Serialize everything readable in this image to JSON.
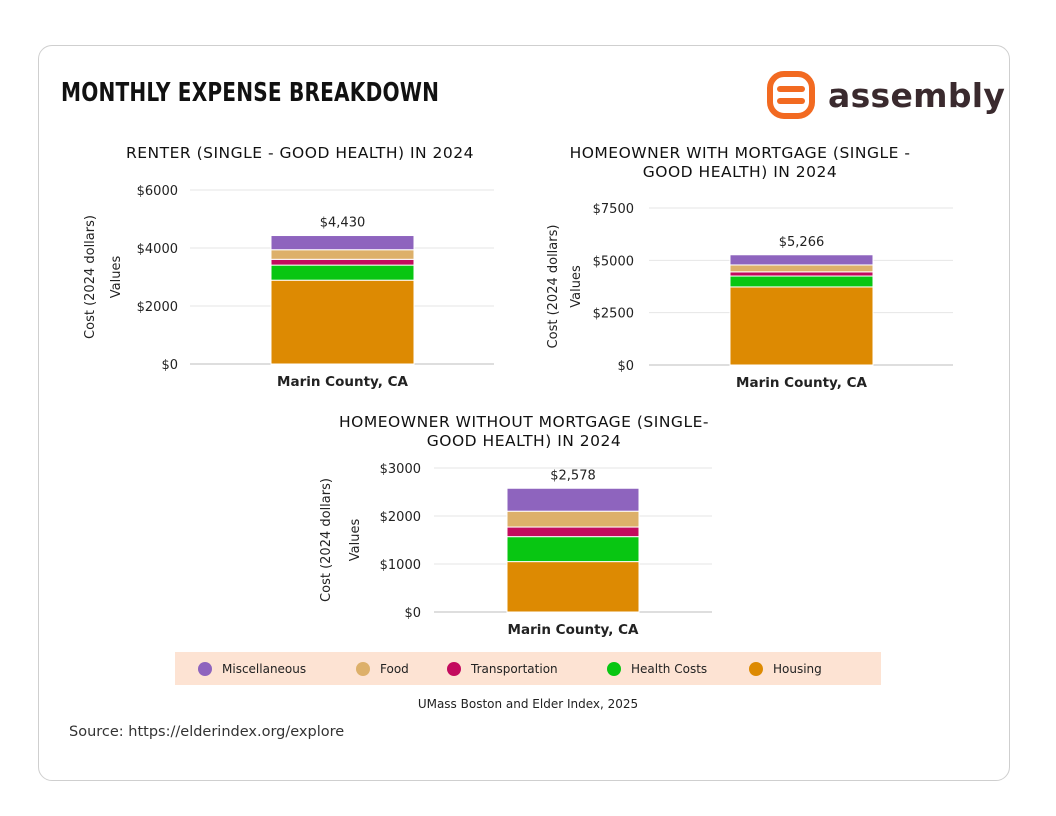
{
  "page": {
    "title": "MONTHLY EXPENSE BREAKDOWN",
    "logo_text": "assembly",
    "credit": "UMass Boston and Elder Index, 2025",
    "source": "Source: https://elderindex.org/explore"
  },
  "colors": {
    "Miscellaneous": "#8e64be",
    "Food": "#ddb06a",
    "Transportation": "#c30b5e",
    "Health Costs": "#08c612",
    "Housing": "#dd8a02",
    "logo": "#f26a21"
  },
  "legend": [
    "Miscellaneous",
    "Food",
    "Transportation",
    "Health Costs",
    "Housing"
  ],
  "chart_data": [
    {
      "type": "bar",
      "stacked": true,
      "title": "RENTER (SINGLE - GOOD HEALTH) IN 2024",
      "ylabel": "Cost (2024 dollars)",
      "ylabel2": "Values",
      "categories": [
        "Marin County, CA"
      ],
      "ylim": [
        0,
        6000
      ],
      "yticks": [
        "$0",
        "$2000",
        "$4000",
        "$6000"
      ],
      "ytick_values": [
        0,
        2000,
        4000,
        6000
      ],
      "total_label": "$4,430",
      "series": [
        {
          "name": "Housing",
          "values": [
            2890
          ]
        },
        {
          "name": "Health Costs",
          "values": [
            520
          ]
        },
        {
          "name": "Transportation",
          "values": [
            200
          ]
        },
        {
          "name": "Food",
          "values": [
            330
          ]
        },
        {
          "name": "Miscellaneous",
          "values": [
            490
          ]
        }
      ]
    },
    {
      "type": "bar",
      "stacked": true,
      "title": "HOMEOWNER WITH MORTGAGE (SINGLE - GOOD HEALTH) IN 2024",
      "title_lines": [
        "HOMEOWNER WITH MORTGAGE (SINGLE -",
        "GOOD HEALTH) IN 2024"
      ],
      "ylabel": "Cost (2024 dollars)",
      "ylabel2": "Values",
      "categories": [
        "Marin County, CA"
      ],
      "ylim": [
        0,
        7500
      ],
      "yticks": [
        "$0",
        "$2500",
        "$5000",
        "$7500"
      ],
      "ytick_values": [
        0,
        2500,
        5000,
        7500
      ],
      "total_label": "$5,266",
      "series": [
        {
          "name": "Housing",
          "values": [
            3730
          ]
        },
        {
          "name": "Health Costs",
          "values": [
            520
          ]
        },
        {
          "name": "Transportation",
          "values": [
            200
          ]
        },
        {
          "name": "Food",
          "values": [
            330
          ]
        },
        {
          "name": "Miscellaneous",
          "values": [
            486
          ]
        }
      ]
    },
    {
      "type": "bar",
      "stacked": true,
      "title": "HOMEOWNER WITHOUT MORTGAGE (SINGLE- GOOD HEALTH) IN 2024",
      "title_lines": [
        "HOMEOWNER WITHOUT MORTGAGE (SINGLE-",
        "GOOD HEALTH) IN 2024"
      ],
      "ylabel": "Cost (2024 dollars)",
      "ylabel2": "Values",
      "categories": [
        "Marin County, CA"
      ],
      "ylim": [
        0,
        3000
      ],
      "yticks": [
        "$0",
        "$1000",
        "$2000",
        "$3000"
      ],
      "ytick_values": [
        0,
        1000,
        2000,
        3000
      ],
      "total_label": "$2,578",
      "series": [
        {
          "name": "Housing",
          "values": [
            1050
          ]
        },
        {
          "name": "Health Costs",
          "values": [
            520
          ]
        },
        {
          "name": "Transportation",
          "values": [
            200
          ]
        },
        {
          "name": "Food",
          "values": [
            330
          ]
        },
        {
          "name": "Miscellaneous",
          "values": [
            478
          ]
        }
      ]
    }
  ]
}
